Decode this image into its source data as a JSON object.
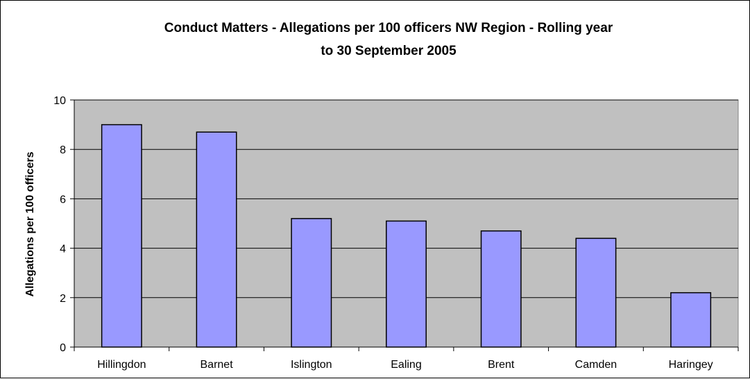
{
  "chart_data": {
    "type": "bar",
    "title": "Conduct Matters - Allegations per 100 officers NW Region - Rolling year to 30 September 2005",
    "title_lines": [
      "Conduct Matters - Allegations per 100 officers NW Region - Rolling year",
      "to 30 September 2005"
    ],
    "xlabel": "",
    "ylabel": "Allegations per 100 officers",
    "categories": [
      "Hillingdon",
      "Barnet",
      "Islington",
      "Ealing",
      "Brent",
      "Camden",
      "Haringey"
    ],
    "values": [
      9.0,
      8.7,
      5.2,
      5.1,
      4.7,
      4.4,
      2.2
    ],
    "ylim": [
      0,
      10
    ],
    "yticks": [
      "0",
      "2",
      "4",
      "6",
      "8",
      "10"
    ],
    "grid": true,
    "legend": "none",
    "colors": {
      "bar_fill": "#9999FF",
      "bar_stroke": "#000000",
      "plot_background": "#C0C0C0",
      "gridline": "#000000"
    }
  }
}
